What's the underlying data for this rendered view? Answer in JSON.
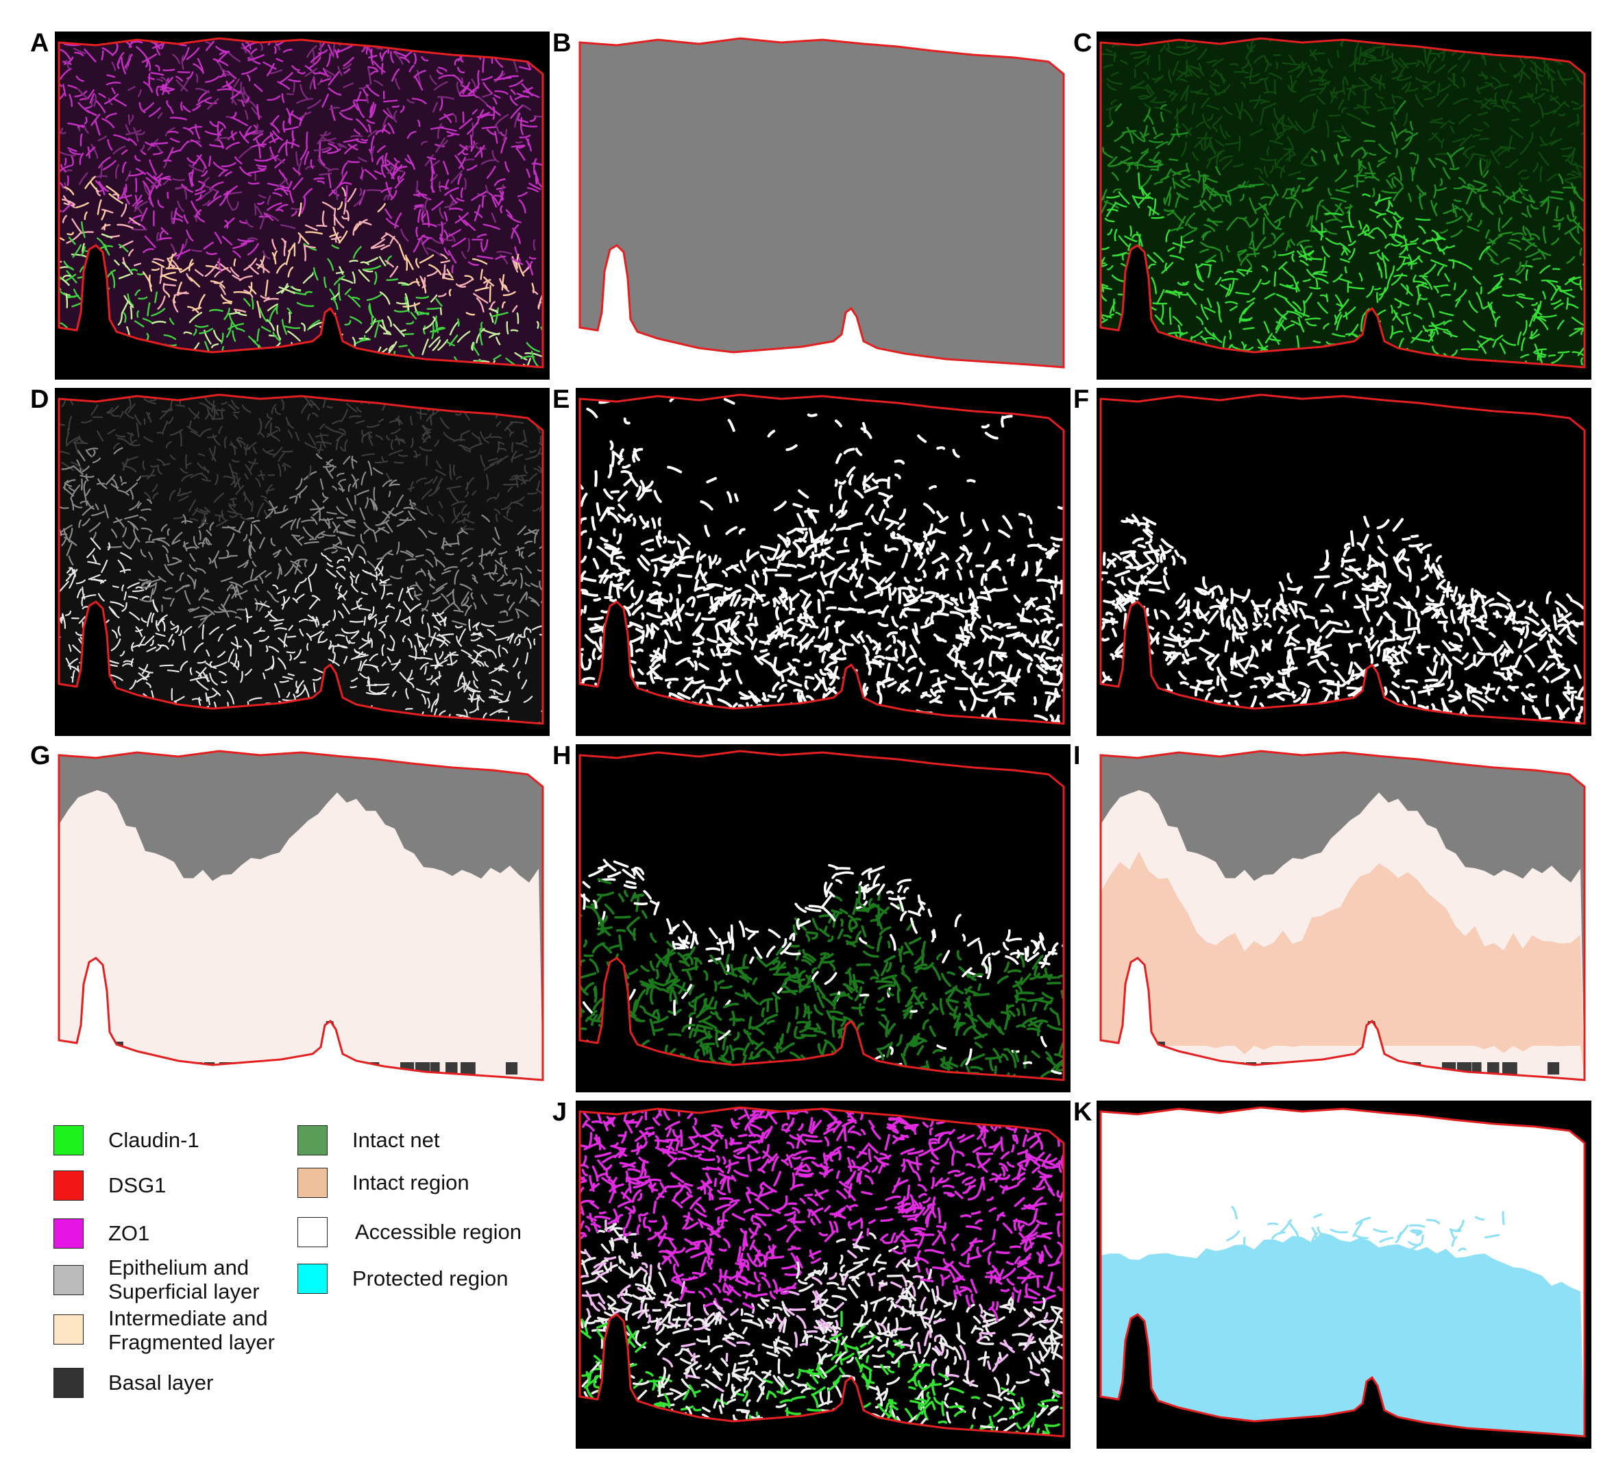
{
  "panels": [
    {
      "letter": "A",
      "style": "fluor-composite"
    },
    {
      "letter": "B",
      "style": "mask-gray"
    },
    {
      "letter": "C",
      "style": "fluor-green"
    },
    {
      "letter": "D",
      "style": "gray-network"
    },
    {
      "letter": "E",
      "style": "binary-network"
    },
    {
      "letter": "F",
      "style": "binary-network-filtered"
    },
    {
      "letter": "G",
      "style": "layers"
    },
    {
      "letter": "H",
      "style": "intact-net"
    },
    {
      "letter": "I",
      "style": "layers-intact"
    },
    {
      "letter": "J",
      "style": "overlay"
    },
    {
      "letter": "K",
      "style": "accessible-protected"
    }
  ],
  "legend": {
    "left": [
      {
        "label": "Claudin-1",
        "color": "#1df21d"
      },
      {
        "label": "DSG1",
        "color": "#f21616"
      },
      {
        "label": "ZO1",
        "color": "#e616e6"
      },
      {
        "label": "Epithelium and\nSuperficial layer",
        "color": "#bbbbbb"
      },
      {
        "label": "Intermediate and\nFragmented layer",
        "color": "#fde4c3"
      },
      {
        "label": "Basal layer",
        "color": "#333333"
      }
    ],
    "right": [
      {
        "label": "Intact net",
        "color": "#5a9e5a"
      },
      {
        "label": "Intact region",
        "color": "#eec19c"
      },
      {
        "label": "Accessible region",
        "color": "#ffffff"
      },
      {
        "label": "Protected region",
        "color": "#00ffff"
      }
    ]
  },
  "colors": {
    "outline": "#e41f1f",
    "gray_mask": "#808080",
    "intermediate": "#f9eeea",
    "intact_region": "#f8cdb8",
    "basal": "#3a3a3a",
    "protected": "#8de0f6",
    "intact_net": "#1b7a1b",
    "claudin": "#2fe52f",
    "zo1": "#e22be2"
  }
}
